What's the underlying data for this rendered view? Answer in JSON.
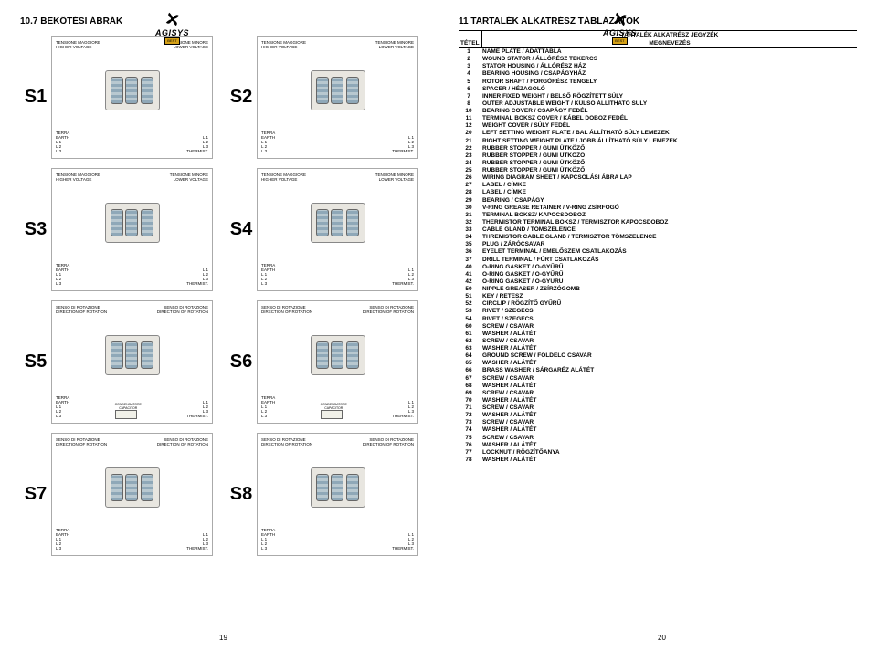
{
  "left": {
    "sectionTitle": "10.7 BEKÖTÉSI ÁBRÁK",
    "pageNum": "19",
    "diagrams": [
      {
        "label": "S1"
      },
      {
        "label": "S2"
      },
      {
        "label": "S3"
      },
      {
        "label": "S4"
      },
      {
        "label": "S5"
      },
      {
        "label": "S6"
      },
      {
        "label": "S7"
      },
      {
        "label": "S8"
      }
    ],
    "diagText": {
      "hi": "TENSIONE MAGGIORE\nHIGHER VOLTAGE",
      "lo": "TENSIONE MINORE\nLOWER VOLTAGE",
      "rotA": "SENSO DI ROTAZIONE\nDIRECTION OF ROTATION",
      "rotB": "SENSO DI ROTAZIONE\nDIRECTION OF ROTATION",
      "terms": "TERRA\nEARTH\nL 1\nL 2\nL 3",
      "termsR": "L 1\nL 2\nL 3\nTHERMIST.",
      "cond": "CONDENSATORE\nCAPACITOR"
    }
  },
  "right": {
    "sectionTitle": "11 TARTALÉK ALKATRÉSZ TÁBLÁZATOK",
    "tableTitle": "TARTALÉK ALKATRÉSZ JEGYZÉK",
    "col1": "TÉTEL",
    "col2": "MEGNEVEZÉS",
    "pageNum": "20",
    "rows": [
      {
        "n": "1",
        "d": "NAME PLATE / ADATTÁBLA"
      },
      {
        "n": "2",
        "d": "WOUND STATOR / ÁLLÓRÉSZ TEKERCS"
      },
      {
        "n": "3",
        "d": "STATOR HOUSING / ÁLLÓRÉSZ HÁZ"
      },
      {
        "n": "4",
        "d": "BEARING HOUSING / CSAPÁGYHÁZ"
      },
      {
        "n": "5",
        "d": "ROTOR SHAFT / FORGÓRÉSZ TENGELY"
      },
      {
        "n": "6",
        "d": "SPACER / HÉZAGOLÓ"
      },
      {
        "n": "7",
        "d": "INNER FIXED WEIGHT / BELSŐ RÖGZÍTETT SÚLY"
      },
      {
        "n": "8",
        "d": "OUTER ADJUSTABLE WEIGHT / KÜLSŐ ÁLLÍTHATÓ SÚLY"
      },
      {
        "n": "10",
        "d": "BEARING COVER / CSAPÁGY FEDÉL"
      },
      {
        "n": "11",
        "d": "TERMINAL BOKSZ COVER / KÁBEL DOBOZ FEDÉL"
      },
      {
        "n": "12",
        "d": "WEIGHT COVER / SÚLY FEDÉL"
      },
      {
        "n": "20",
        "d": "LEFT SETTING WEIGHT PLATE / BAL ÁLLÍTHATÓ SÚLY LEMEZEK"
      },
      {
        "n": "21",
        "d": "RIGHT SETTING WEIGHT PLATE / JOBB ÁLLÍTHATÓ SÚLY LEMEZEK"
      },
      {
        "n": "22",
        "d": "RUBBER STOPPER / GUMI ÜTKÖZŐ"
      },
      {
        "n": "23",
        "d": "RUBBER STOPPER / GUMI ÜTKÖZŐ"
      },
      {
        "n": "24",
        "d": "RUBBER STOPPER / GUMI ÜTKÖZŐ"
      },
      {
        "n": "25",
        "d": "RUBBER STOPPER / GUMI ÜTKÖZŐ"
      },
      {
        "n": "26",
        "d": "WIRING DIAGRAM SHEET / KAPCSOLÁSI ÁBRA LAP"
      },
      {
        "n": "27",
        "d": "LABEL / CÍMKE"
      },
      {
        "n": "28",
        "d": "LABEL / CÍMKE"
      },
      {
        "n": "29",
        "d": "BEARING / CSAPÁGY"
      },
      {
        "n": "30",
        "d": "V-RING GREASE RETAINER / V-RING ZSÍRFOGÓ"
      },
      {
        "n": "31",
        "d": "TERMINAL BOKSZ/ KAPOCSDOBOZ"
      },
      {
        "n": "32",
        "d": "THERMISTOR TERMINAL BOKSZ / TERMISZTOR KAPOCSDOBOZ"
      },
      {
        "n": "33",
        "d": "CABLE GLAND / TÖMSZELENCE"
      },
      {
        "n": "34",
        "d": "THREMISTOR CABLE GLAND / TERMISZTOR TÖMSZELENCE"
      },
      {
        "n": "35",
        "d": "PLUG / ZÁRÓCSAVAR"
      },
      {
        "n": "36",
        "d": "EYELET TERMINAL / EMELŐSZEM CSATLAKOZÁS"
      },
      {
        "n": "37",
        "d": "DRILL TERMINAL / FÚRT CSATLAKOZÁS"
      },
      {
        "n": "40",
        "d": "O-RING GASKET / O-GYŰRŰ"
      },
      {
        "n": "41",
        "d": "O-RING GASKET / O-GYŰRŰ"
      },
      {
        "n": "42",
        "d": "O-RING GASKET / O-GYŰRŰ"
      },
      {
        "n": "50",
        "d": "NIPPLE GREASER / ZSÍRZÓGOMB"
      },
      {
        "n": "51",
        "d": "KEY / RETESZ"
      },
      {
        "n": "52",
        "d": "CIRCLIP / RÖGZÍTŐ GYŰRŰ"
      },
      {
        "n": "53",
        "d": "RIVET / SZEGECS"
      },
      {
        "n": "54",
        "d": "RIVET / SZEGECS"
      },
      {
        "n": "60",
        "d": "SCREW / CSAVAR"
      },
      {
        "n": "61",
        "d": "WASHER / ALÁTÉT"
      },
      {
        "n": "62",
        "d": "SCREW / CSAVAR"
      },
      {
        "n": "63",
        "d": "WASHER / ALÁTÉT"
      },
      {
        "n": "64",
        "d": "GROUND SCREW / FÖLDELŐ CSAVAR"
      },
      {
        "n": "65",
        "d": "WASHER / ALÁTÉT"
      },
      {
        "n": "66",
        "d": "BRASS WASHER / SÁRGARÉZ ALÁTÉT"
      },
      {
        "n": "67",
        "d": "SCREW / CSAVAR"
      },
      {
        "n": "68",
        "d": "WASHER / ALÁTÉT"
      },
      {
        "n": "69",
        "d": "SCREW / CSAVAR"
      },
      {
        "n": "70",
        "d": "WASHER / ALÁTÉT"
      },
      {
        "n": "71",
        "d": "SCREW / CSAVAR"
      },
      {
        "n": "72",
        "d": "WASHER / ALÁTÉT"
      },
      {
        "n": "73",
        "d": "SCREW / CSAVAR"
      },
      {
        "n": "74",
        "d": "WASHER / ALÁTÉT"
      },
      {
        "n": "75",
        "d": "SCREW / CSAVAR"
      },
      {
        "n": "76",
        "d": "WASHER / ALÁTÉT"
      },
      {
        "n": "77",
        "d": "LOCKNUT / RÖGZÍTŐANYA"
      },
      {
        "n": "78",
        "d": "WASHER / ALÁTÉT"
      }
    ]
  },
  "logo": {
    "brand": "AGISYS",
    "sub": "BEST"
  }
}
